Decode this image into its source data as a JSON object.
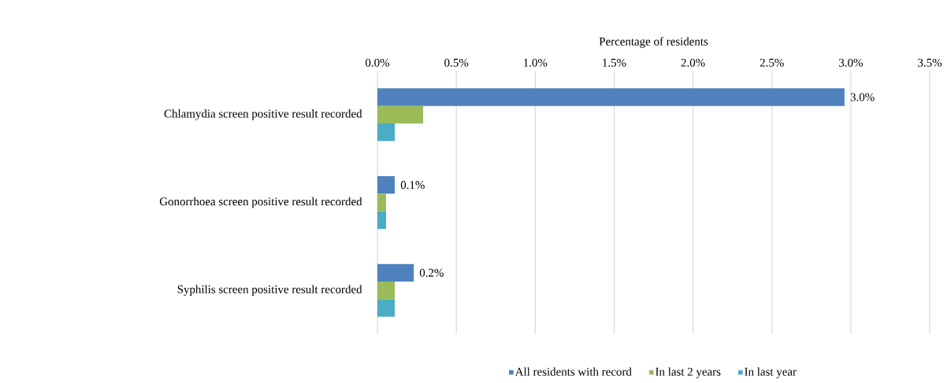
{
  "chart_data": {
    "type": "bar",
    "orientation": "horizontal",
    "xlabel": "Percentage of residents",
    "categories": [
      "Chlamydia screen positive result recorded",
      "Gonorrhoea screen positive result recorded",
      "Syphilis screen positive result recorded"
    ],
    "series": [
      {
        "name": "All residents with record",
        "color": "#4f81bd",
        "values": [
          2.96,
          0.11,
          0.23
        ],
        "value_labels": [
          "3.0%",
          "0.1%",
          "0.2%"
        ]
      },
      {
        "name": "In last 2 years",
        "color": "#9bbb59",
        "values": [
          0.29,
          0.055,
          0.11
        ]
      },
      {
        "name": "In last year",
        "color": "#4bacc6",
        "values": [
          0.11,
          0.055,
          0.11
        ]
      }
    ],
    "xlim": [
      0,
      3.5
    ],
    "xticks": [
      {
        "value": 0,
        "label": "0.0%"
      },
      {
        "value": 0.5,
        "label": "0.5%"
      },
      {
        "value": 1,
        "label": "1.0%"
      },
      {
        "value": 1.5,
        "label": "1.5%"
      },
      {
        "value": 2,
        "label": "2.0%"
      },
      {
        "value": 2.5,
        "label": "2.5%"
      },
      {
        "value": 3,
        "label": "3.0%"
      },
      {
        "value": 3.5,
        "label": "3.5%"
      }
    ],
    "grid": "x",
    "legend": "bottom"
  }
}
